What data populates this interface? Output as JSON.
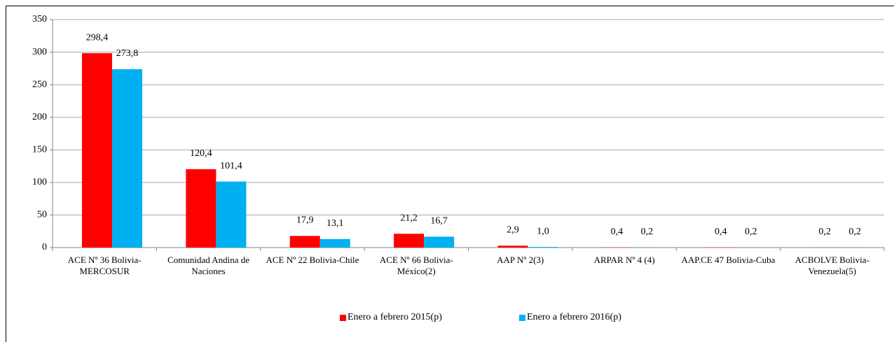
{
  "chart_data": {
    "type": "bar",
    "categories": [
      "ACE Nº 36 Bolivia-MERCOSUR",
      "Comunidad Andina de Naciones",
      "ACE Nº 22 Bolivia-Chile",
      "ACE Nº 66 Bolivia-México(2)",
      "AAP Nº 2(3)",
      "ARPAR Nº 4 (4)",
      "AAP.CE 47 Bolivia-Cuba",
      "ACBOLVE Bolivia-Venezuela(5)"
    ],
    "series": [
      {
        "name": "Enero a febrero 2015(p)",
        "color": "#ff0000",
        "values": [
          298.4,
          120.4,
          17.9,
          21.2,
          2.9,
          0.4,
          0.4,
          0.2
        ],
        "value_labels": [
          "298,4",
          "120,4",
          "17,9",
          "21,2",
          "2,9",
          "0,4",
          "0,4",
          "0,2"
        ]
      },
      {
        "name": "Enero a febrero 2016(p)",
        "color": "#00b0f0",
        "values": [
          273.8,
          101.4,
          13.1,
          16.7,
          1.0,
          0.2,
          0.2,
          0.2
        ],
        "value_labels": [
          "273,8",
          "101,4",
          "13,1",
          "16,7",
          "1,0",
          "0,2",
          "0,2",
          "0,2"
        ]
      }
    ],
    "ylim": [
      0,
      350
    ],
    "yticks": [
      0,
      50,
      100,
      150,
      200,
      250,
      300,
      350
    ],
    "grid": true,
    "legend": "bottom"
  }
}
